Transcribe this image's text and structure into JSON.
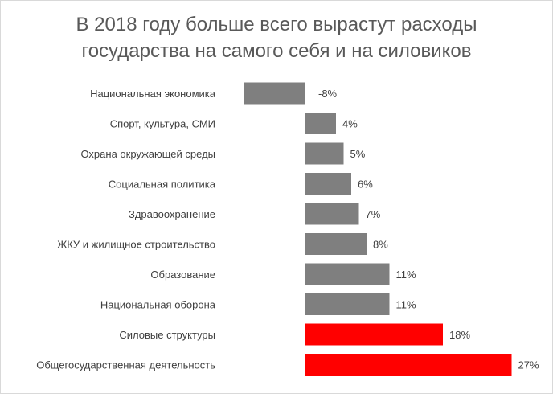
{
  "chart_data": {
    "type": "bar",
    "orientation": "horizontal",
    "title_lines": [
      "В 2018 году больше всего вырастут расходы",
      "государства на самого себя и на силовиков"
    ],
    "categories": [
      "Национальная экономика",
      "Спорт, культура, СМИ",
      "Охрана окружающей среды",
      "Социальная политика",
      "Здравоохранение",
      "ЖКУ и жилищное строительство",
      "Образование",
      "Национальная оборона",
      "Силовые структуры",
      "Общегосударственная  деятельность"
    ],
    "values": [
      -8,
      4,
      5,
      6,
      7,
      8,
      11,
      11,
      18,
      27
    ],
    "value_labels": [
      "-8%",
      "4%",
      "5%",
      "6%",
      "7%",
      "8%",
      "11%",
      "11%",
      "18%",
      "27%"
    ],
    "unit": "%",
    "bar_colors": [
      "#7f7f7f",
      "#7f7f7f",
      "#7f7f7f",
      "#7f7f7f",
      "#7f7f7f",
      "#7f7f7f",
      "#7f7f7f",
      "#7f7f7f",
      "#ff0000",
      "#ff0000"
    ],
    "xlim": [
      -8,
      27
    ],
    "grid": false,
    "legend": false
  }
}
